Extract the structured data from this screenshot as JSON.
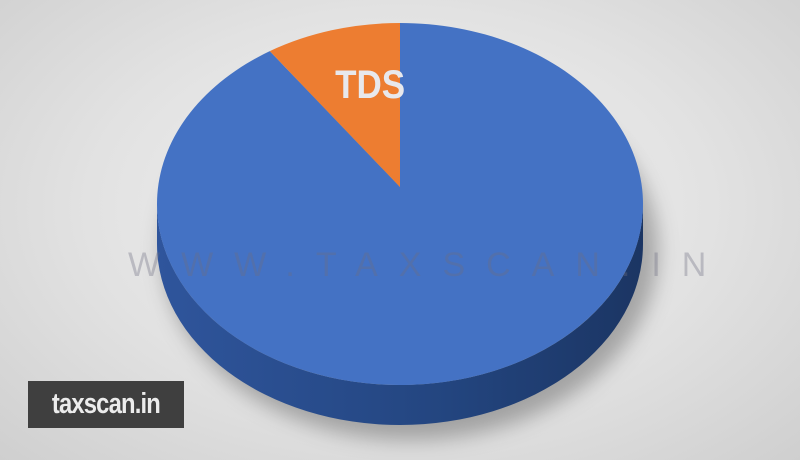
{
  "chart_data": {
    "type": "pie",
    "style": "3d",
    "slices": [
      {
        "label": "TDS",
        "value": 9,
        "color": "#ed7d31",
        "label_color": "#e8e8ec"
      },
      {
        "label": "",
        "value": 91,
        "color": "#4472c4",
        "side_color": "#2a4d8f"
      }
    ],
    "start_angle": "12 o'clock, TDS slice counter-clockwise",
    "legend": "none"
  },
  "watermark": "WWW.TAXSCAN.IN",
  "logo": {
    "text": "taxscan.in",
    "background": "#3f3f3f"
  }
}
